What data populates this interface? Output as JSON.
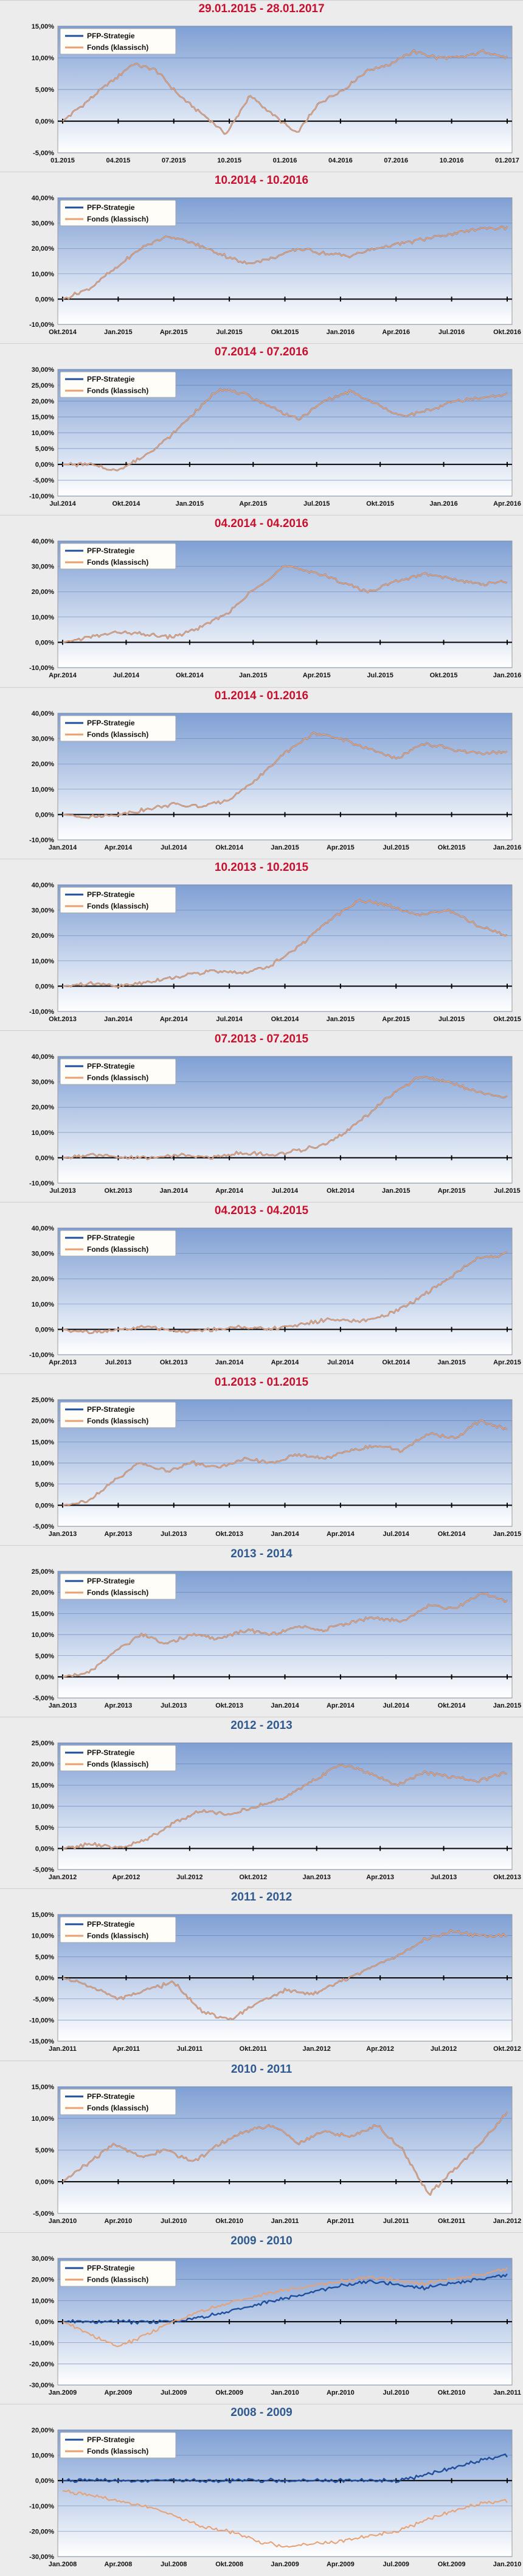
{
  "colors": {
    "strategy": "#1f4e9c",
    "fonds": "#e8a070",
    "title_red": "#c8102e",
    "title_blue": "#2f5a91"
  },
  "legend": {
    "strategy": "PFP-Strategie",
    "fonds": "Fonds (klassisch)"
  },
  "chart_data": [
    {
      "type": "line",
      "title": "29.01.2015 - 28.01.2017",
      "title_color": "red",
      "yticks": [
        "-5,00%",
        "0,00%",
        "5,00%",
        "10,00%",
        "15,00%"
      ],
      "ylim": [
        -5,
        15
      ],
      "xticks": [
        "01.2015",
        "04.2015",
        "07.2015",
        "10.2015",
        "01.2016",
        "04.2016",
        "07.2016",
        "10.2016",
        "01.2017"
      ],
      "series": [
        {
          "name": "PFP-Strategie",
          "values": [
            0,
            3,
            6,
            9,
            8,
            4,
            1,
            -2,
            4,
            1,
            -2,
            3,
            5,
            8,
            9,
            11,
            10,
            10,
            11,
            10
          ]
        },
        {
          "name": "Fonds (klassisch)",
          "values": [
            0,
            3,
            6,
            9,
            8,
            4,
            1,
            -2,
            4,
            1,
            -2,
            3,
            5,
            8,
            9,
            11,
            10,
            10,
            11,
            10
          ]
        }
      ]
    },
    {
      "type": "line",
      "title": "10.2014 - 10.2016",
      "title_color": "red",
      "yticks": [
        "-10,00%",
        "0,00%",
        "10,00%",
        "20,00%",
        "30,00%",
        "40,00%"
      ],
      "ylim": [
        -10,
        40
      ],
      "xticks": [
        "Okt.2014",
        "Jan.2015",
        "Apr.2015",
        "Jul.2015",
        "Okt.2015",
        "Jan.2016",
        "Apr.2016",
        "Jul.2016",
        "Okt.2016"
      ],
      "series": [
        {
          "name": "PFP-Strategie",
          "values": [
            0,
            4,
            12,
            20,
            25,
            22,
            18,
            14,
            16,
            20,
            18,
            17,
            20,
            22,
            24,
            26,
            28,
            28
          ]
        },
        {
          "name": "Fonds (klassisch)",
          "values": [
            0,
            4,
            12,
            20,
            25,
            22,
            18,
            14,
            16,
            20,
            18,
            17,
            20,
            22,
            24,
            26,
            28,
            28
          ]
        }
      ]
    },
    {
      "type": "line",
      "title": "07.2014 - 07.2016",
      "title_color": "red",
      "yticks": [
        "-10,00%",
        "-5,00%",
        "0,00%",
        "5,00%",
        "10,00%",
        "15,00%",
        "20,00%",
        "25,00%",
        "30,00%"
      ],
      "ylim": [
        -10,
        30
      ],
      "xticks": [
        "Jul.2014",
        "Okt.2014",
        "Jan.2015",
        "Apr.2015",
        "Jul.2015",
        "Okt.2015",
        "Jan.2016",
        "Apr.2016"
      ],
      "series": [
        {
          "name": "PFP-Strategie",
          "values": [
            0,
            0,
            -2,
            2,
            8,
            16,
            24,
            22,
            18,
            14,
            20,
            23,
            19,
            15,
            17,
            20,
            21,
            22
          ]
        },
        {
          "name": "Fonds (klassisch)",
          "values": [
            0,
            0,
            -2,
            2,
            8,
            16,
            24,
            22,
            18,
            14,
            20,
            23,
            19,
            15,
            17,
            20,
            21,
            22
          ]
        }
      ]
    },
    {
      "type": "line",
      "title": "04.2014 - 04.2016",
      "title_color": "red",
      "yticks": [
        "-10,00%",
        "0,00%",
        "10,00%",
        "20,00%",
        "30,00%",
        "40,00%"
      ],
      "ylim": [
        -10,
        40
      ],
      "xticks": [
        "Apr.2014",
        "Jul.2014",
        "Okt.2014",
        "Jan.2015",
        "Apr.2015",
        "Jul.2015",
        "Okt.2015",
        "Jan.2016"
      ],
      "series": [
        {
          "name": "PFP-Strategie",
          "values": [
            0,
            2,
            4,
            3,
            2,
            6,
            12,
            22,
            30,
            28,
            24,
            20,
            24,
            27,
            25,
            23,
            24
          ]
        },
        {
          "name": "Fonds (klassisch)",
          "values": [
            0,
            2,
            4,
            3,
            2,
            6,
            12,
            22,
            30,
            28,
            24,
            20,
            24,
            27,
            25,
            23,
            24
          ]
        }
      ]
    },
    {
      "type": "line",
      "title": "01.2014 - 01.2016",
      "title_color": "red",
      "yticks": [
        "-10,00%",
        "0,00%",
        "10,00%",
        "20,00%",
        "30,00%",
        "40,00%"
      ],
      "ylim": [
        -10,
        40
      ],
      "xticks": [
        "Jan.2014",
        "Apr.2014",
        "Jul.2014",
        "Okt.2014",
        "Jan.2015",
        "Apr.2015",
        "Jul.2015",
        "Okt.2015",
        "Jan.2016"
      ],
      "series": [
        {
          "name": "PFP-Strategie",
          "values": [
            0,
            -1,
            0,
            2,
            4,
            3,
            6,
            14,
            24,
            32,
            30,
            26,
            22,
            28,
            26,
            24,
            25
          ]
        },
        {
          "name": "Fonds (klassisch)",
          "values": [
            0,
            -1,
            0,
            2,
            4,
            3,
            6,
            14,
            24,
            32,
            30,
            26,
            22,
            28,
            26,
            24,
            25
          ]
        }
      ]
    },
    {
      "type": "line",
      "title": "10.2013 - 10.2015",
      "title_color": "red",
      "yticks": [
        "-10,00%",
        "0,00%",
        "10,00%",
        "20,00%",
        "30,00%",
        "40,00%"
      ],
      "ylim": [
        -10,
        40
      ],
      "xticks": [
        "Okt.2013",
        "Jan.2014",
        "Apr.2014",
        "Jul.2014",
        "Okt.2014",
        "Jan.2015",
        "Apr.2015",
        "Jul.2015",
        "Okt.2015"
      ],
      "series": [
        {
          "name": "PFP-Strategie",
          "values": [
            0,
            1,
            0,
            2,
            4,
            6,
            5,
            8,
            16,
            26,
            34,
            32,
            28,
            30,
            24,
            20
          ]
        },
        {
          "name": "Fonds (klassisch)",
          "values": [
            0,
            1,
            0,
            2,
            4,
            6,
            5,
            8,
            16,
            26,
            34,
            32,
            28,
            30,
            24,
            20
          ]
        }
      ]
    },
    {
      "type": "line",
      "title": "07.2013 - 07.2015",
      "title_color": "red",
      "yticks": [
        "-10,00%",
        "0,00%",
        "10,00%",
        "20,00%",
        "30,00%",
        "40,00%"
      ],
      "ylim": [
        -10,
        40
      ],
      "xticks": [
        "Jul.2013",
        "Okt.2013",
        "Jan.2014",
        "Apr.2014",
        "Jul.2014",
        "Okt.2014",
        "Jan.2015",
        "Apr.2015",
        "Jul.2015"
      ],
      "series": [
        {
          "name": "PFP-Strategie",
          "values": [
            0,
            1,
            0,
            0,
            1,
            0,
            2,
            1,
            3,
            6,
            14,
            24,
            32,
            30,
            26,
            24
          ]
        },
        {
          "name": "Fonds (klassisch)",
          "values": [
            0,
            1,
            0,
            0,
            1,
            0,
            2,
            1,
            3,
            6,
            14,
            24,
            32,
            30,
            26,
            24
          ]
        }
      ]
    },
    {
      "type": "line",
      "title": "04.2013 - 04.2015",
      "title_color": "red",
      "yticks": [
        "-10,00%",
        "0,00%",
        "10,00%",
        "20,00%",
        "30,00%",
        "40,00%"
      ],
      "ylim": [
        -10,
        40
      ],
      "xticks": [
        "Apr.2013",
        "Jul.2013",
        "Okt.2013",
        "Jan.2014",
        "Apr.2014",
        "Jul.2014",
        "Okt.2014",
        "Jan.2015",
        "Apr.2015"
      ],
      "series": [
        {
          "name": "PFP-Strategie",
          "values": [
            0,
            -1,
            0,
            1,
            -1,
            0,
            1,
            0,
            2,
            4,
            3,
            6,
            12,
            20,
            28,
            30
          ]
        },
        {
          "name": "Fonds (klassisch)",
          "values": [
            0,
            -1,
            0,
            1,
            -1,
            0,
            1,
            0,
            2,
            4,
            3,
            6,
            12,
            20,
            28,
            30
          ]
        }
      ]
    },
    {
      "type": "line",
      "title": "01.2013 - 01.2015",
      "title_color": "red",
      "yticks": [
        "-5,00%",
        "0,00%",
        "5,00%",
        "10,00%",
        "15,00%",
        "20,00%",
        "25,00%"
      ],
      "ylim": [
        -5,
        25
      ],
      "xticks": [
        "Jan.2013",
        "Apr.2013",
        "Jul.2013",
        "Okt.2013",
        "Jan.2014",
        "Apr.2014",
        "Jul.2014",
        "Okt.2014",
        "Jan.2015"
      ],
      "series": [
        {
          "name": "PFP-Strategie",
          "values": [
            0,
            1,
            6,
            10,
            8,
            10,
            9,
            11,
            10,
            12,
            11,
            13,
            14,
            13,
            17,
            16,
            20,
            18
          ]
        },
        {
          "name": "Fonds (klassisch)",
          "values": [
            0,
            1,
            6,
            10,
            8,
            10,
            9,
            11,
            10,
            12,
            11,
            13,
            14,
            13,
            17,
            16,
            20,
            18
          ]
        }
      ]
    },
    {
      "type": "line",
      "title": "2013 - 2014",
      "title_color": "blue",
      "yticks": [
        "-5,00%",
        "0,00%",
        "5,00%",
        "10,00%",
        "15,00%",
        "20,00%",
        "25,00%"
      ],
      "ylim": [
        -5,
        25
      ],
      "xticks": [
        "Jan.2013",
        "Apr.2013",
        "Jul.2013",
        "Okt.2013",
        "Jan.2014",
        "Apr.2014",
        "Jul.2014",
        "Okt.2014",
        "Jan.2015"
      ],
      "series": [
        {
          "name": "PFP-Strategie",
          "values": [
            0,
            1,
            6,
            10,
            8,
            10,
            9,
            11,
            10,
            12,
            11,
            13,
            14,
            13,
            17,
            16,
            20,
            18
          ]
        },
        {
          "name": "Fonds (klassisch)",
          "values": [
            0,
            1,
            6,
            10,
            8,
            10,
            9,
            11,
            10,
            12,
            11,
            13,
            14,
            13,
            17,
            16,
            20,
            18
          ]
        }
      ]
    },
    {
      "type": "line",
      "title": "2012 - 2013",
      "title_color": "blue",
      "yticks": [
        "-5,00%",
        "0,00%",
        "5,00%",
        "10,00%",
        "15,00%",
        "20,00%",
        "25,00%"
      ],
      "ylim": [
        -5,
        25
      ],
      "xticks": [
        "Jan.2012",
        "Apr.2012",
        "Jul.2012",
        "Okt.2012",
        "Jan.2013",
        "Apr.2013",
        "Jul.2013",
        "Okt.2013"
      ],
      "series": [
        {
          "name": "PFP-Strategie",
          "values": [
            0,
            1,
            0,
            2,
            6,
            9,
            8,
            10,
            12,
            16,
            20,
            18,
            15,
            18,
            17,
            16,
            18
          ]
        },
        {
          "name": "Fonds (klassisch)",
          "values": [
            0,
            1,
            0,
            2,
            6,
            9,
            8,
            10,
            12,
            16,
            20,
            18,
            15,
            18,
            17,
            16,
            18
          ]
        }
      ]
    },
    {
      "type": "line",
      "title": "2011 - 2012",
      "title_color": "blue",
      "yticks": [
        "-15,00%",
        "-10,00%",
        "-5,00%",
        "0,00%",
        "5,00%",
        "10,00%",
        "15,00%"
      ],
      "ylim": [
        -15,
        15
      ],
      "xticks": [
        "Jan.2011",
        "Apr.2011",
        "Jul.2011",
        "Okt.2011",
        "Jan.2012",
        "Apr.2012",
        "Jul.2012",
        "Okt.2012"
      ],
      "series": [
        {
          "name": "PFP-Strategie",
          "values": [
            0,
            -2,
            -5,
            -3,
            -1,
            -8,
            -10,
            -6,
            -3,
            -4,
            -1,
            2,
            5,
            9,
            11,
            10,
            10
          ]
        },
        {
          "name": "Fonds (klassisch)",
          "values": [
            0,
            -2,
            -5,
            -3,
            -1,
            -8,
            -10,
            -6,
            -3,
            -4,
            -1,
            2,
            5,
            9,
            11,
            10,
            10
          ]
        }
      ]
    },
    {
      "type": "line",
      "title": "2010 - 2011",
      "title_color": "blue",
      "yticks": [
        "-5,00%",
        "0,00%",
        "5,00%",
        "10,00%",
        "15,00%"
      ],
      "ylim": [
        -5,
        15
      ],
      "xticks": [
        "Jan.2010",
        "Apr.2010",
        "Jul.2010",
        "Okt.2010",
        "Jan.2011",
        "Apr.2011",
        "Jul.2011",
        "Okt.2011",
        "Jan.2012"
      ],
      "series": [
        {
          "name": "PFP-Strategie",
          "values": [
            0,
            3,
            6,
            4,
            5,
            3,
            6,
            8,
            9,
            6,
            8,
            7,
            9,
            5,
            -2,
            2,
            6,
            11
          ]
        },
        {
          "name": "Fonds (klassisch)",
          "values": [
            0,
            3,
            6,
            4,
            5,
            3,
            6,
            8,
            9,
            6,
            8,
            7,
            9,
            5,
            -2,
            2,
            6,
            11
          ]
        }
      ]
    },
    {
      "type": "line",
      "title": "2009 - 2010",
      "title_color": "blue",
      "yticks": [
        "-30,00%",
        "-20,00%",
        "-10,00%",
        "0,00%",
        "10,00%",
        "20,00%",
        "30,00%"
      ],
      "ylim": [
        -30,
        30
      ],
      "xticks": [
        "Jan.2009",
        "Apr.2009",
        "Jul.2009",
        "Okt.2009",
        "Jan.2010",
        "Apr.2010",
        "Jul.2010",
        "Okt.2010",
        "Jan.2011"
      ],
      "series": [
        {
          "name": "PFP-Strategie",
          "values": [
            0,
            0,
            0,
            0,
            0,
            2,
            5,
            8,
            11,
            14,
            17,
            19,
            18,
            16,
            18,
            20,
            22
          ]
        },
        {
          "name": "Fonds (klassisch)",
          "values": [
            0,
            -6,
            -12,
            -6,
            0,
            5,
            9,
            12,
            15,
            17,
            19,
            21,
            20,
            18,
            20,
            22,
            25
          ]
        }
      ]
    },
    {
      "type": "line",
      "title": "2008 - 2009",
      "title_color": "blue",
      "yticks": [
        "-30,00%",
        "-20,00%",
        "-10,00%",
        "0,00%",
        "10,00%",
        "20,00%"
      ],
      "ylim": [
        -30,
        20
      ],
      "xticks": [
        "Jan.2008",
        "Apr.2008",
        "Jul.2008",
        "Okt.2008",
        "Jan.2009",
        "Apr.2009",
        "Jul.2009",
        "Okt.2009",
        "Jan.2010"
      ],
      "series": [
        {
          "name": "PFP-Strategie",
          "values": [
            0,
            0,
            0,
            0,
            0,
            0,
            0,
            0,
            0,
            0,
            0,
            0,
            0,
            2,
            5,
            8,
            10
          ]
        },
        {
          "name": "Fonds (klassisch)",
          "values": [
            -4,
            -6,
            -8,
            -10,
            -14,
            -18,
            -20,
            -24,
            -26,
            -25,
            -24,
            -22,
            -20,
            -16,
            -12,
            -9,
            -8
          ]
        }
      ]
    }
  ]
}
